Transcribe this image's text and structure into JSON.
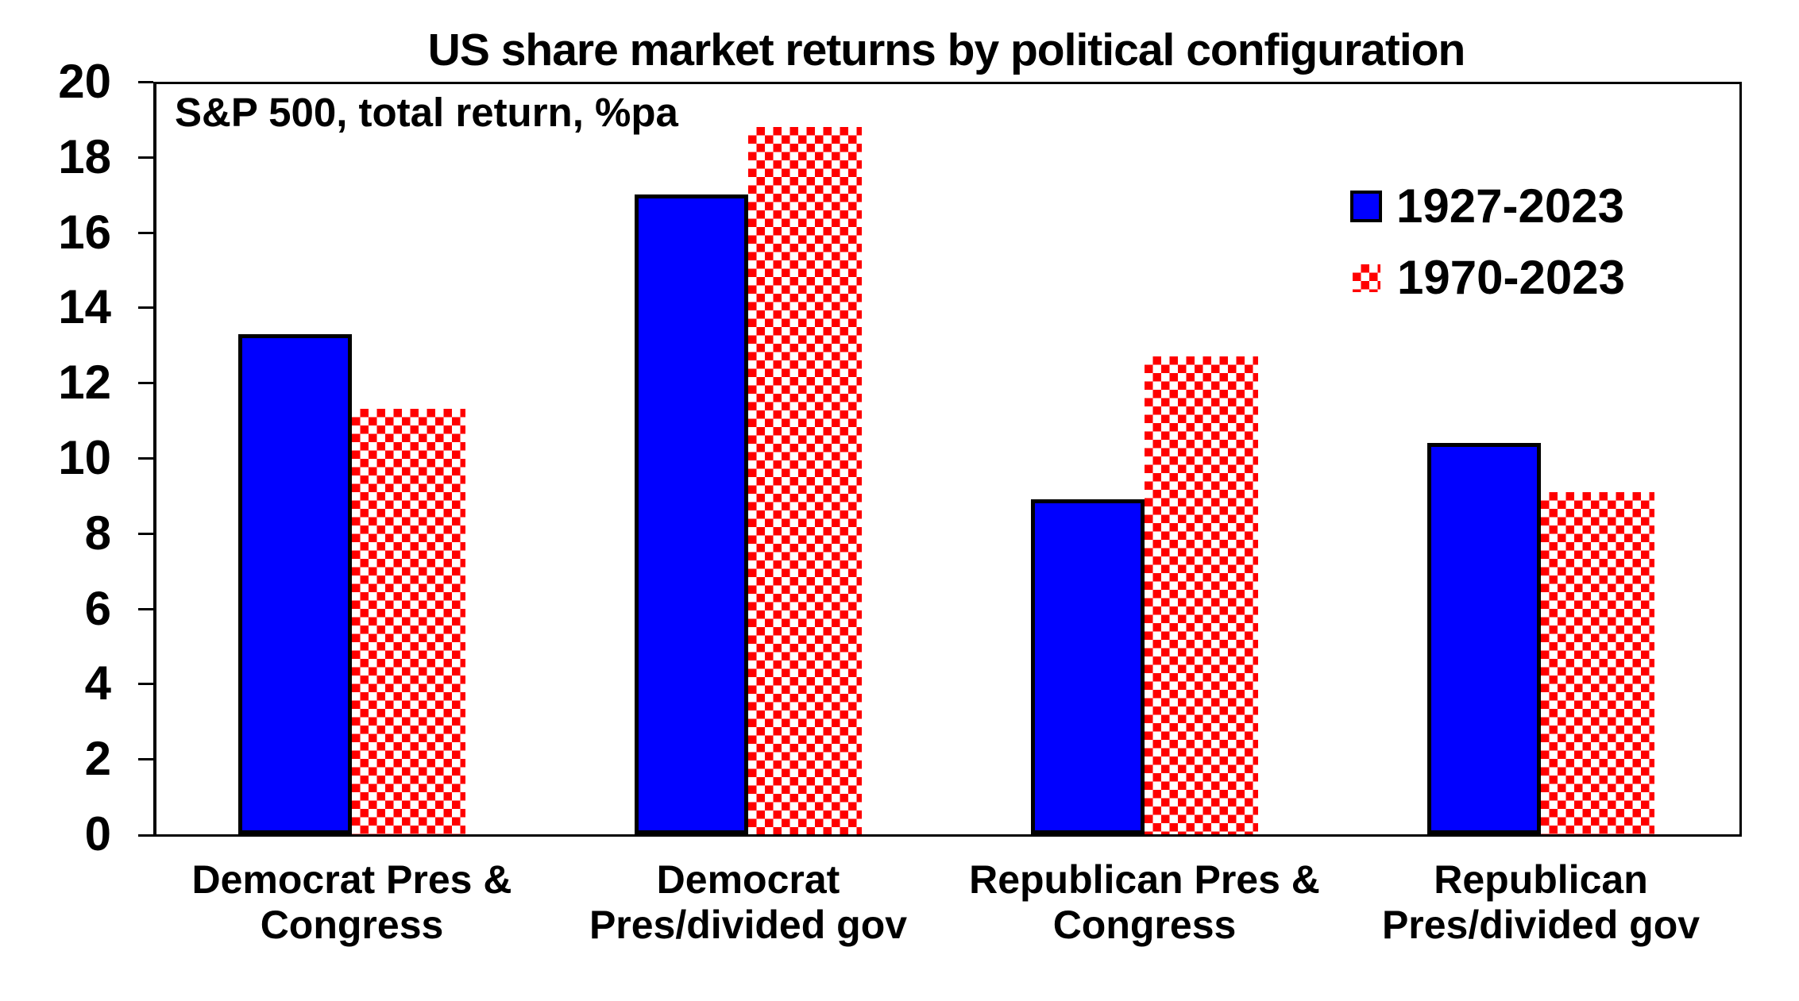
{
  "chart_data": {
    "type": "bar",
    "title": "US share market returns by political configuration",
    "subtitle": "S&P 500, total return, %pa",
    "categories": [
      "Democrat Pres &\nCongress",
      "Democrat\nPres/divided gov",
      "Republican Pres &\nCongress",
      "Republican\nPres/divided gov"
    ],
    "series": [
      {
        "name": "1927-2023",
        "color": "#0000ff",
        "pattern": "solid",
        "values": [
          13.3,
          17.0,
          8.9,
          10.4
        ]
      },
      {
        "name": "1970-2023",
        "color": "#ff0000",
        "pattern": "checker",
        "values": [
          11.3,
          18.8,
          12.7,
          9.1
        ]
      }
    ],
    "ylim": [
      0,
      20
    ],
    "ytick_step": 2,
    "grid": false,
    "legend_position": "top-right-inside"
  }
}
